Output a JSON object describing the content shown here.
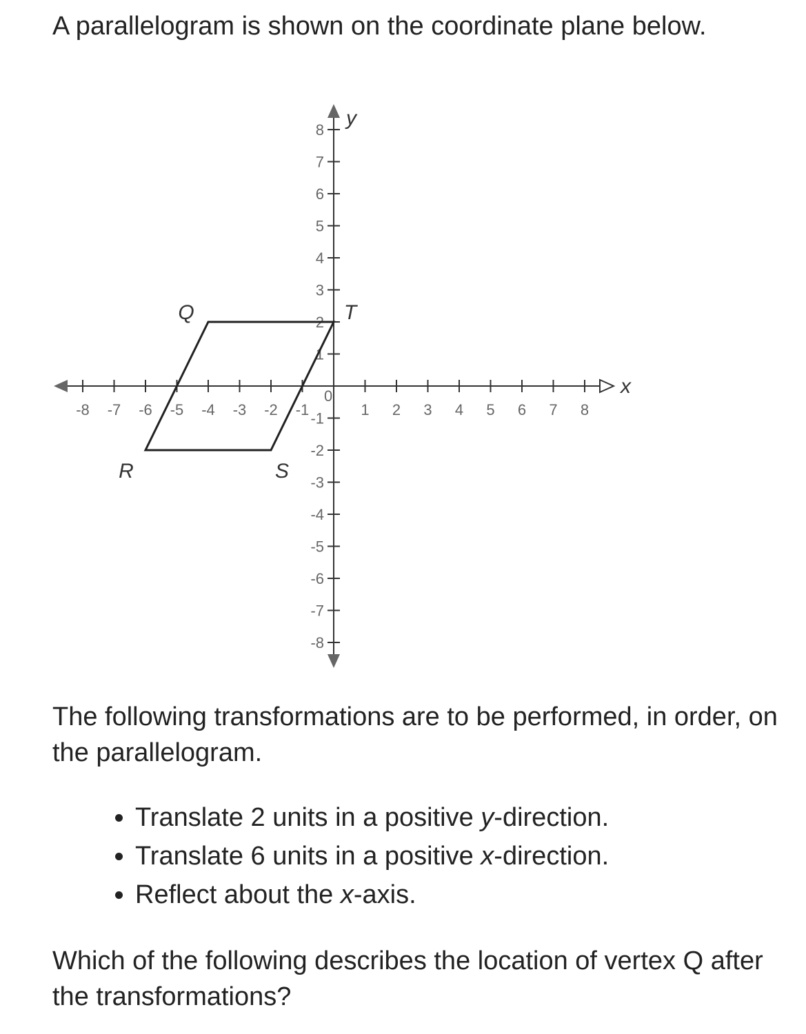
{
  "intro": "A parallelogram is shown on the coordinate plane below.",
  "graph": {
    "x_label": "x",
    "y_label": "y",
    "xlim": [
      -8,
      8
    ],
    "ylim": [
      -8,
      8
    ],
    "xticks": [
      -8,
      -7,
      -6,
      -5,
      -4,
      -3,
      -2,
      -1,
      1,
      2,
      3,
      4,
      5,
      6,
      7,
      8
    ],
    "yticks": [
      -8,
      -7,
      -6,
      -5,
      -4,
      -3,
      -2,
      -1,
      1,
      2,
      3,
      4,
      5,
      6,
      7,
      8
    ],
    "origin": 0,
    "vertices": [
      {
        "label": "Q",
        "x": -4,
        "y": 2
      },
      {
        "label": "T",
        "x": 0,
        "y": 2
      },
      {
        "label": "S",
        "x": -2,
        "y": -2
      },
      {
        "label": "R",
        "x": -6,
        "y": -2
      }
    ]
  },
  "instructions": "The following transformations are to be performed, in order, on the parallelogram.",
  "steps": [
    [
      "Translate 2 units in a positive ",
      "y",
      "-direction."
    ],
    [
      "Translate 6 units in a positive ",
      "x",
      "-direction."
    ],
    [
      "Reflect about the ",
      "x",
      "-axis."
    ]
  ],
  "question": "Which of the following describes the location of vertex Q after the transformations?"
}
